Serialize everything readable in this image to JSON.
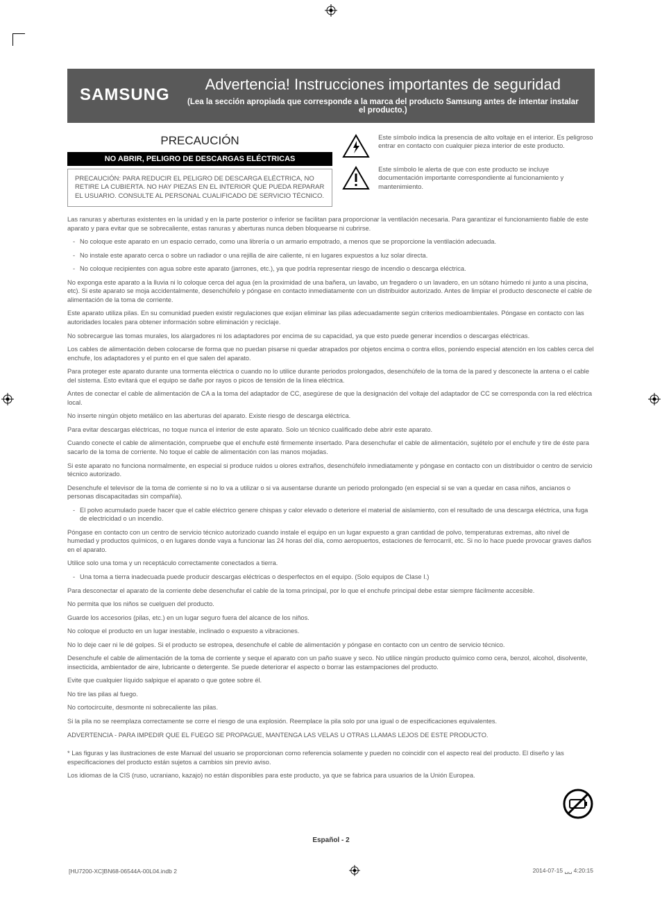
{
  "brand": "SAMSUNG",
  "header": {
    "title": "Advertencia! Instrucciones importantes de seguridad",
    "subtitle": "(Lea la sección apropiada que corresponde a la marca del producto Samsung antes de intentar instalar el producto.)"
  },
  "precaution": {
    "title": "PRECAUCIÓN",
    "bar": "NO ABRIR, PELIGRO DE DESCARGAS ELÉCTRICAS",
    "box": "PRECAUCIÓN: PARA REDUCIR EL PELIGRO DE DESCARGA ELÉCTRICA, NO RETIRE LA CUBIERTA. NO HAY PIEZAS EN EL INTERIOR QUE PUEDA REPARAR EL USUARIO. CONSULTE AL PERSONAL CUALIFICADO DE SERVICIO TÉCNICO."
  },
  "symbols": [
    {
      "text": "Este símbolo indica la presencia de alto voltaje en el interior. Es peligroso entrar en contacto con cualquier pieza interior de este producto."
    },
    {
      "text": "Este símbolo le alerta de que con este producto se incluye documentación importante correspondiente al funcionamiento y mantenimiento."
    }
  ],
  "paragraphs": [
    "Las ranuras y aberturas existentes en la unidad y en la parte posterior o inferior se facilitan para proporcionar la ventilación necesaria. Para garantizar el funcionamiento fiable de este aparato y para evitar que se sobrecaliente, estas ranuras y aberturas nunca deben bloquearse ni cubrirse.",
    "- No coloque este aparato en un espacio cerrado, como una librería o un armario empotrado, a menos que se proporcione la ventilación adecuada.",
    "- No instale este aparato cerca o sobre un radiador o una rejilla de aire caliente, ni en lugares expuestos a luz solar directa.",
    "- No coloque recipientes con agua sobre este aparato (jarrones, etc.), ya que podría representar riesgo de incendio o descarga eléctrica.",
    "No exponga este aparato a la lluvia ni lo coloque cerca del agua (en la proximidad de una bañera, un lavabo, un fregadero o un lavadero, en un sótano húmedo ni junto a una piscina, etc). Si este aparato se moja accidentalmente, desenchúfelo y póngase en contacto inmediatamente con un distribuidor autorizado. Antes de limpiar el producto desconecte el cable de alimentación de la toma de corriente.",
    "Este aparato utiliza pilas. En su comunidad pueden existir regulaciones que exijan eliminar las pilas adecuadamente según criterios medioambientales. Póngase en contacto con las autoridades locales para obtener información sobre eliminación y reciclaje.",
    "No sobrecargue las tomas murales, los alargadores ni los adaptadores por encima de su capacidad, ya que esto puede generar incendios o descargas eléctricas.",
    "Los cables de alimentación deben colocarse de forma que no puedan pisarse ni quedar atrapados por objetos encima o contra ellos, poniendo especial atención en los cables cerca del enchufe, los adaptadores y el punto en el que salen del aparato.",
    "Para proteger este aparato durante una tormenta eléctrica o cuando no lo utilice durante periodos prolongados, desenchúfelo de la toma de la pared y desconecte la antena o el cable del sistema. Esto evitará que el equipo se dañe por rayos o picos de tensión de la línea eléctrica.",
    "Antes de conectar el cable de alimentación de CA a la toma del adaptador de CC, asegúrese de que la designación del voltaje del adaptador de CC se corresponda con la red eléctrica local.",
    "No inserte ningún objeto metálico en las aberturas del aparato. Existe riesgo de descarga eléctrica.",
    "Para evitar descargas eléctricas, no toque nunca el interior de este aparato. Solo un técnico cualificado debe abrir este aparato.",
    "Cuando conecte el cable de alimentación, compruebe que el enchufe esté firmemente insertado. Para desenchufar el cable de alimentación, sujételo por el enchufe y tire de éste para sacarlo de la toma de corriente. No toque el cable de alimentación con las manos mojadas.",
    "Si este aparato no funciona normalmente, en especial si produce ruidos u olores extraños, desenchúfelo inmediatamente y póngase en contacto con un distribuidor o centro de servicio técnico autorizado.",
    "Desenchufe el televisor de la toma de corriente si no lo va a utilizar o si va ausentarse durante un periodo prolongado (en especial si se van a quedar en casa niños, ancianos o personas discapacitadas sin compañía).",
    "- El polvo acumulado puede hacer que el cable eléctrico genere chispas y calor elevado o deteriore el material de aislamiento, con el resultado de una descarga eléctrica, una fuga de electricidad o un incendio.",
    "Póngase en contacto con un centro de servicio técnico autorizado cuando instale el equipo en un lugar expuesto a gran cantidad de polvo, temperaturas extremas, alto nivel de humedad y productos químicos, o en lugares donde vaya a funcionar las 24 horas del día, como aeropuertos, estaciones de ferrocarril, etc. Si no lo hace puede provocar graves daños en el aparato.",
    "Utilice solo una toma y un receptáculo correctamente conectados a tierra.",
    "- Una toma a tierra inadecuada puede producir descargas eléctricas o desperfectos en el equipo. (Solo equipos de Clase I.)",
    "Para desconectar el aparato de la corriente debe desenchufar el cable de la toma principal, por lo que el enchufe principal debe estar siempre fácilmente accesible.",
    "No permita que los niños se cuelguen del producto.",
    "Guarde los accesorios (pilas, etc.) en un lugar seguro fuera del alcance de los niños.",
    "No coloque el producto en un lugar inestable, inclinado o expuesto a vibraciones.",
    "No lo deje caer ni le dé golpes. Si el producto se estropea, desenchufe el cable de alimentación y póngase en contacto con un centro de servicio técnico.",
    "Desenchufe el cable de alimentación de la toma de corriente y seque el aparato con un paño suave y seco. No utilice ningún producto químico como cera, benzol, alcohol, disolvente, insecticida, ambientador de aire, lubricante o detergente. Se puede deteriorar el aspecto o borrar las estampaciones del producto.",
    "Evite que cualquier líquido salpique el aparato o que gotee sobre él.",
    "No tire las pilas al fuego.",
    "No cortocircuite, desmonte ni sobrecaliente las pilas.",
    "Si la pila no se reemplaza correctamente se corre el riesgo de una explosión. Reemplace la pila solo por una igual o de especificaciones equivalentes.",
    "ADVERTENCIA - PARA IMPEDIR QUE EL FUEGO SE PROPAGUE, MANTENGA LAS VELAS U OTRAS LLAMAS LEJOS DE ESTE PRODUCTO."
  ],
  "footnotes": [
    "* Las figuras y las ilustraciones de este Manual del usuario se proporcionan como referencia solamente y pueden no coincidir con el aspecto real del producto. El diseño y las especificaciones del producto están sujetos a cambios sin previo aviso.",
    "Los idiomas de la CIS (ruso, ucraniano, kazajo) no están disponibles para este producto, ya que se fabrica para usuarios de la Unión Europea."
  ],
  "page_number": "Español - 2",
  "footer_left": "[HU7200-XC]BN68-06544A-00L04.indb   2",
  "footer_right": "2014-07-15   ␣␣ 4:20:15",
  "colors": {
    "band_bg": "#595959",
    "text_body": "#555555",
    "black": "#000000"
  }
}
